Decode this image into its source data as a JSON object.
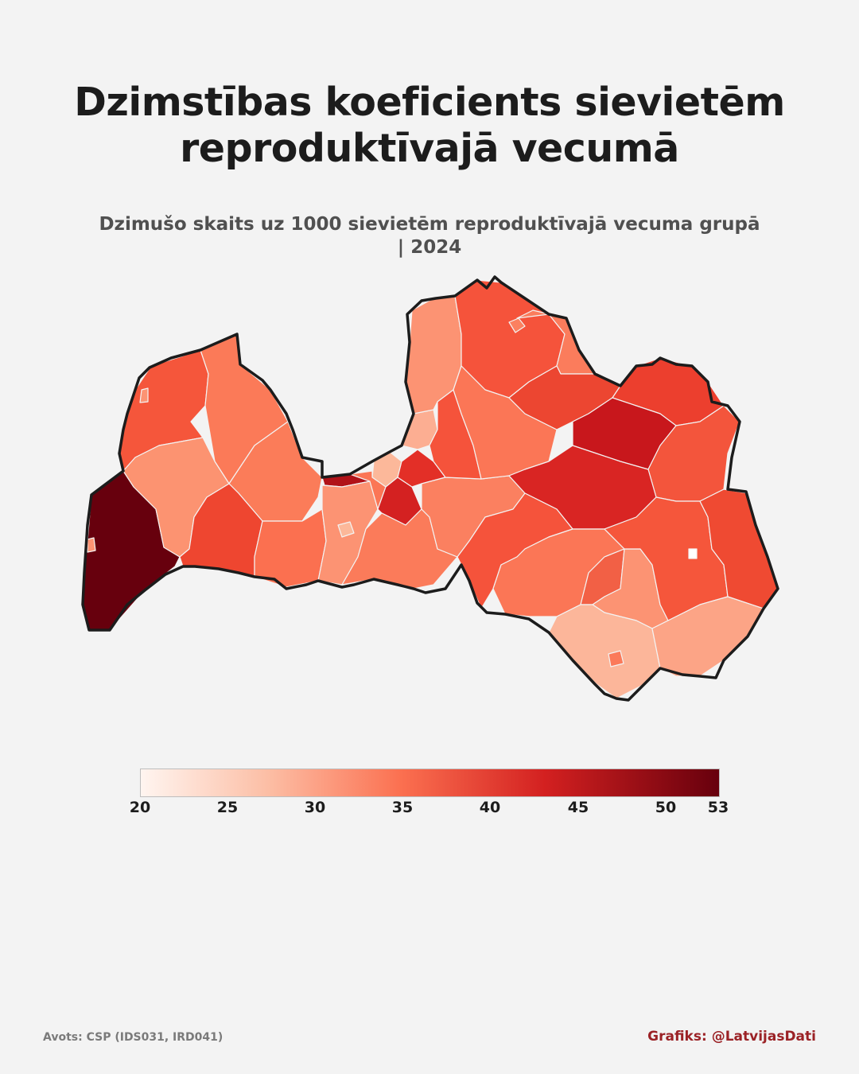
{
  "title": "Dzimstības koeficients sievietēm reproduktīvajā vecumā",
  "subtitle": "Dzimušo skaits uz 1000 sievietēm reproduktīvajā vecuma grupā | 2024",
  "legend": {
    "min": 20,
    "max": 53,
    "ticks": [
      "20",
      "25",
      "30",
      "35",
      "40",
      "45",
      "50",
      "53"
    ],
    "colors": [
      "#fff5f0",
      "#fcbea5",
      "#fb7050",
      "#d32020",
      "#67000d"
    ]
  },
  "source": "Avots: CSP (IDS031, IRD041)",
  "credit": "Grafiks: @LatvijasDati"
}
